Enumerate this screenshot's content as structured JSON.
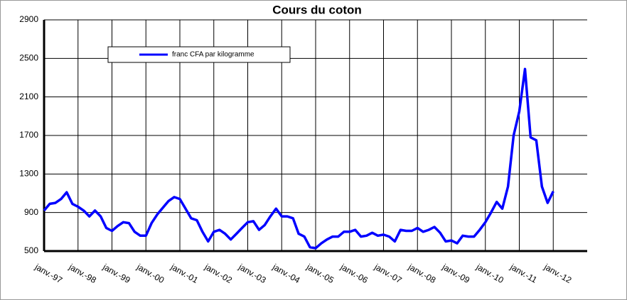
{
  "chart_data": {
    "type": "line",
    "title": "Cours du coton",
    "categories": [
      "janv.-97",
      null,
      null,
      null,
      null,
      null,
      "janv.-98",
      null,
      null,
      null,
      null,
      null,
      "janv.-99",
      null,
      null,
      null,
      null,
      null,
      "janv.-00",
      null,
      null,
      null,
      null,
      null,
      "janv.-01",
      null,
      null,
      null,
      null,
      null,
      "janv.-02",
      null,
      null,
      null,
      null,
      null,
      "janv.-03",
      null,
      null,
      null,
      null,
      null,
      "janv.-04",
      null,
      null,
      null,
      null,
      null,
      "janv.-05",
      null,
      null,
      null,
      null,
      null,
      "janv.-06",
      null,
      null,
      null,
      null,
      null,
      "janv.-07",
      null,
      null,
      null,
      null,
      null,
      "janv.-08",
      null,
      null,
      null,
      null,
      null,
      "janv.-09",
      null,
      null,
      null,
      null,
      null,
      "janv.-10",
      null,
      null,
      null,
      null,
      null,
      "janv.-11",
      null,
      null,
      null,
      null,
      null,
      "janv.-12",
      null,
      null,
      null,
      null,
      null,
      null
    ],
    "series": [
      {
        "name": "franc CFA par kilogramme",
        "color": "#0000ff",
        "values": [
          920,
          990,
          1000,
          1040,
          1110,
          990,
          960,
          920,
          860,
          920,
          860,
          740,
          710,
          760,
          800,
          790,
          700,
          660,
          660,
          790,
          880,
          950,
          1020,
          1060,
          1040,
          940,
          840,
          820,
          700,
          600,
          700,
          720,
          680,
          620,
          680,
          740,
          800,
          810,
          720,
          770,
          860,
          940,
          860,
          860,
          840,
          680,
          650,
          540,
          530,
          580,
          620,
          650,
          650,
          700,
          700,
          720,
          650,
          660,
          690,
          660,
          670,
          650,
          600,
          720,
          710,
          710,
          740,
          700,
          720,
          750,
          690,
          600,
          610,
          580,
          660,
          650,
          650,
          720,
          800,
          900,
          1010,
          940,
          1170,
          1700,
          1950,
          2390,
          1680,
          1650,
          1170,
          1000,
          1120,
          null,
          null,
          null,
          null,
          null,
          null
        ]
      }
    ],
    "ylim": [
      500,
      2900
    ],
    "yticks": [
      500,
      900,
      1300,
      1700,
      2100,
      2500,
      2900
    ],
    "grid": true,
    "legend": "top-left"
  }
}
